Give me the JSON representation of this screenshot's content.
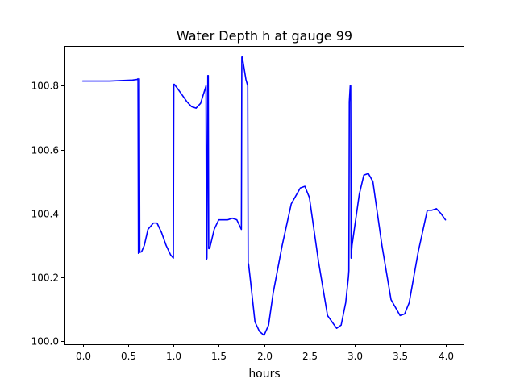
{
  "chart_data": {
    "type": "line",
    "title": "Water Depth h at gauge 99",
    "xlabel": "hours",
    "ylabel": "",
    "xlim": [
      -0.2,
      4.2
    ],
    "ylim": [
      99.99,
      100.925
    ],
    "xticks": [
      0.0,
      0.5,
      1.0,
      1.5,
      2.0,
      2.5,
      3.0,
      3.5,
      4.0
    ],
    "xtick_labels": [
      "0.0",
      "0.5",
      "1.0",
      "1.5",
      "2.0",
      "2.5",
      "3.0",
      "3.5",
      "4.0"
    ],
    "yticks": [
      100.0,
      100.2,
      100.4,
      100.6,
      100.8
    ],
    "ytick_labels": [
      "100.0",
      "100.2",
      "100.4",
      "100.6",
      "100.8"
    ],
    "grid": false,
    "series": [
      {
        "color": "#0000ff",
        "x": [
          0.0,
          0.3,
          0.55,
          0.6,
          0.61,
          0.615,
          0.62,
          0.625,
          0.63,
          0.65,
          0.68,
          0.72,
          0.78,
          0.82,
          0.87,
          0.92,
          0.97,
          1.0,
          1.005,
          1.01,
          1.05,
          1.1,
          1.15,
          1.2,
          1.25,
          1.3,
          1.35,
          1.36,
          1.365,
          1.37,
          1.38,
          1.385,
          1.39,
          1.4,
          1.45,
          1.5,
          1.55,
          1.6,
          1.65,
          1.7,
          1.75,
          1.755,
          1.76,
          1.8,
          1.82,
          1.825,
          1.83,
          1.85,
          1.9,
          1.95,
          2.0,
          2.05,
          2.1,
          2.2,
          2.3,
          2.4,
          2.45,
          2.5,
          2.6,
          2.7,
          2.8,
          2.85,
          2.9,
          2.93,
          2.935,
          2.94,
          2.95,
          2.955,
          2.96,
          2.97,
          3.05,
          3.1,
          3.15,
          3.2,
          3.3,
          3.4,
          3.5,
          3.55,
          3.6,
          3.7,
          3.8,
          3.85,
          3.9,
          3.95,
          4.0
        ],
        "y": [
          100.815,
          100.815,
          100.818,
          100.82,
          100.822,
          100.275,
          100.275,
          100.822,
          100.278,
          100.28,
          100.3,
          100.35,
          100.37,
          100.37,
          100.34,
          100.3,
          100.27,
          100.26,
          100.805,
          100.805,
          100.79,
          100.77,
          100.75,
          100.735,
          100.73,
          100.745,
          100.79,
          100.8,
          100.255,
          100.26,
          100.832,
          100.832,
          100.29,
          100.29,
          100.35,
          100.38,
          100.38,
          100.38,
          100.385,
          100.38,
          100.35,
          100.89,
          100.89,
          100.82,
          100.8,
          100.245,
          100.24,
          100.19,
          100.06,
          100.03,
          100.018,
          100.05,
          100.15,
          100.3,
          100.43,
          100.48,
          100.485,
          100.45,
          100.25,
          100.08,
          100.04,
          100.05,
          100.12,
          100.2,
          100.22,
          100.75,
          100.8,
          100.8,
          100.26,
          100.3,
          100.46,
          100.52,
          100.525,
          100.5,
          100.3,
          100.13,
          100.08,
          100.085,
          100.12,
          100.28,
          100.41,
          100.41,
          100.415,
          100.4,
          100.38
        ]
      }
    ]
  }
}
